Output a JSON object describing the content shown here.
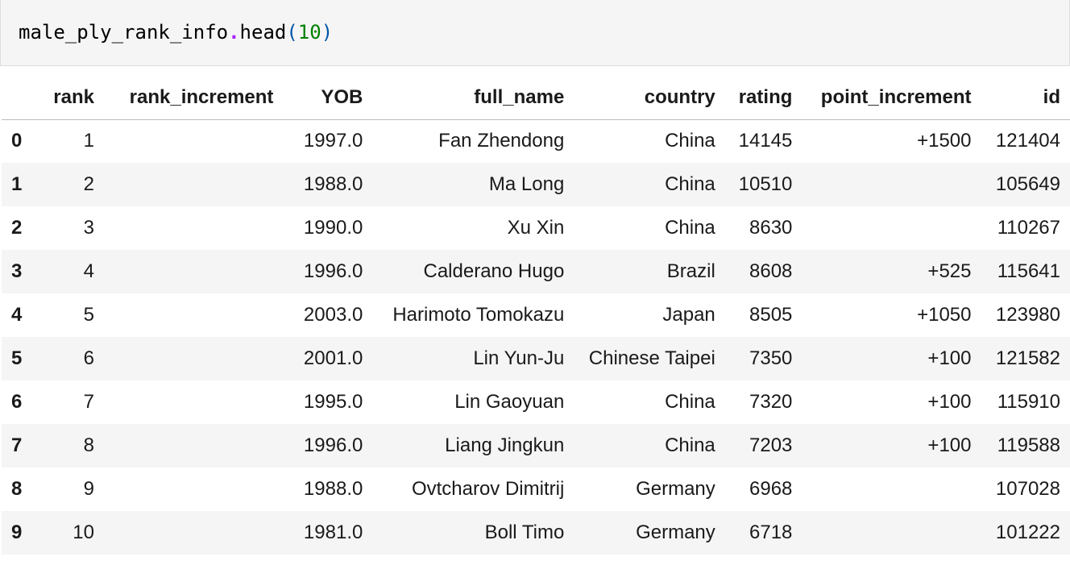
{
  "code_cell": {
    "object": "male_ply_rank_info",
    "dot": ".",
    "method": "head",
    "open_paren": "(",
    "arg": "10",
    "close_paren": ")"
  },
  "table": {
    "columns": [
      "",
      "rank",
      "rank_increment",
      "YOB",
      "full_name",
      "country",
      "rating",
      "point_increment",
      "id"
    ],
    "rows": [
      {
        "index": "0",
        "rank": "1",
        "rank_increment": "",
        "YOB": "1997.0",
        "full_name": "Fan Zhendong",
        "country": "China",
        "rating": "14145",
        "point_increment": "+1500",
        "id": "121404"
      },
      {
        "index": "1",
        "rank": "2",
        "rank_increment": "",
        "YOB": "1988.0",
        "full_name": "Ma Long",
        "country": "China",
        "rating": "10510",
        "point_increment": "",
        "id": "105649"
      },
      {
        "index": "2",
        "rank": "3",
        "rank_increment": "",
        "YOB": "1990.0",
        "full_name": "Xu Xin",
        "country": "China",
        "rating": "8630",
        "point_increment": "",
        "id": "110267"
      },
      {
        "index": "3",
        "rank": "4",
        "rank_increment": "",
        "YOB": "1996.0",
        "full_name": "Calderano Hugo",
        "country": "Brazil",
        "rating": "8608",
        "point_increment": "+525",
        "id": "115641"
      },
      {
        "index": "4",
        "rank": "5",
        "rank_increment": "",
        "YOB": "2003.0",
        "full_name": "Harimoto Tomokazu",
        "country": "Japan",
        "rating": "8505",
        "point_increment": "+1050",
        "id": "123980"
      },
      {
        "index": "5",
        "rank": "6",
        "rank_increment": "",
        "YOB": "2001.0",
        "full_name": "Lin Yun-Ju",
        "country": "Chinese Taipei",
        "rating": "7350",
        "point_increment": "+100",
        "id": "121582"
      },
      {
        "index": "6",
        "rank": "7",
        "rank_increment": "",
        "YOB": "1995.0",
        "full_name": "Lin Gaoyuan",
        "country": "China",
        "rating": "7320",
        "point_increment": "+100",
        "id": "115910"
      },
      {
        "index": "7",
        "rank": "8",
        "rank_increment": "",
        "YOB": "1996.0",
        "full_name": "Liang Jingkun",
        "country": "China",
        "rating": "7203",
        "point_increment": "+100",
        "id": "119588"
      },
      {
        "index": "8",
        "rank": "9",
        "rank_increment": "",
        "YOB": "1988.0",
        "full_name": "Ovtcharov Dimitrij",
        "country": "Germany",
        "rating": "6968",
        "point_increment": "",
        "id": "107028"
      },
      {
        "index": "9",
        "rank": "10",
        "rank_increment": "",
        "YOB": "1981.0",
        "full_name": "Boll Timo",
        "country": "Germany",
        "rating": "6718",
        "point_increment": "",
        "id": "101222"
      }
    ]
  },
  "colors": {
    "cell_background": "#f5f5f5",
    "method_dot": "#aa22ff",
    "paren": "#0055aa",
    "number": "#008000"
  }
}
